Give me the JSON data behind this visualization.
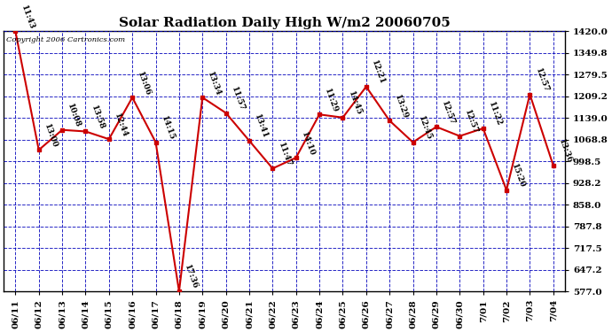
{
  "title": "Solar Radiation Daily High W/m2 20060705",
  "copyright": "Copyright 2006 Cartronics.com",
  "dates": [
    "06/11",
    "06/12",
    "06/13",
    "06/14",
    "06/15",
    "06/16",
    "06/17",
    "06/18",
    "06/19",
    "06/20",
    "06/21",
    "06/22",
    "06/23",
    "06/24",
    "06/25",
    "06/26",
    "06/27",
    "06/28",
    "06/29",
    "06/30",
    "7/01",
    "7/02",
    "7/03",
    "7/04"
  ],
  "values": [
    1420,
    1035,
    1100,
    1095,
    1070,
    1205,
    1060,
    577,
    1205,
    1155,
    1065,
    975,
    1010,
    1150,
    1140,
    1240,
    1130,
    1060,
    1110,
    1080,
    1105,
    905,
    1215,
    985
  ],
  "point_labels": [
    "11:43",
    "13:00",
    "10:08",
    "13:58",
    "12:44",
    "13:06",
    "14:15",
    "17:36",
    "13:34",
    "11:57",
    "13:41",
    "11:47",
    "14:10",
    "11:29",
    "14:45",
    "12:21",
    "13:29",
    "12:45",
    "12:57",
    "12:57",
    "11:22",
    "15:20",
    "12:57",
    "13:36"
  ],
  "ylim_min": 577.0,
  "ylim_max": 1420.0,
  "ytick_values": [
    577.0,
    647.2,
    717.5,
    787.8,
    858.0,
    928.2,
    998.5,
    1068.8,
    1139.0,
    1209.2,
    1279.5,
    1349.8,
    1420.0
  ],
  "line_color": "#cc0000",
  "marker_color": "#cc0000",
  "bg_color": "#ffffff",
  "grid_color": "#0000bb",
  "title_color": "#000000",
  "label_color": "#000000",
  "axis_text_color": "#000000",
  "title_fontsize": 11,
  "tick_fontsize": 7.5,
  "annotation_fontsize": 6.5,
  "figwidth": 6.9,
  "figheight": 3.75,
  "dpi": 100
}
